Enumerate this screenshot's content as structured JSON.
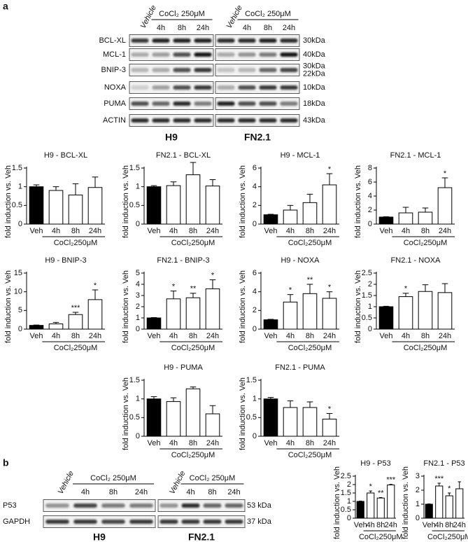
{
  "panel_labels": [
    "a",
    "b"
  ],
  "blot_a": {
    "vehicle": "Vehicle",
    "treatment": "CoCl₂ 250μM",
    "times": [
      "4h",
      "8h",
      "24h"
    ],
    "proteins": [
      "BCL-XL",
      "MCL-1",
      "BNIP-3",
      "NOXA",
      "PUMA",
      "ACTIN"
    ],
    "sizes": [
      [
        "30kDa"
      ],
      [
        "40kDa"
      ],
      [
        "30kDa",
        "22kDa"
      ],
      [
        "10kDa"
      ],
      [
        "18kDa"
      ],
      [
        "43kDa"
      ]
    ],
    "cell_lines": [
      "H9",
      "FN2.1"
    ]
  },
  "blot_b": {
    "vehicle": "Vehicle",
    "treatment": "CoCl₂ 250μM",
    "times": [
      "4h",
      "8h",
      "24h"
    ],
    "proteins": [
      "P53",
      "GAPDH"
    ],
    "sizes": [
      [
        "53 kDa"
      ],
      [
        "37 kDa"
      ]
    ],
    "cell_lines": [
      "H9",
      "FN2.1"
    ]
  },
  "chart_data": [
    {
      "type": "bar",
      "title": "H9 - BCL-XL",
      "y_label": "fold induction vs. Veh",
      "group_label": "CoCl₂250μM",
      "categories": [
        "Veh",
        "4h",
        "8h",
        "24h"
      ],
      "values": [
        1.0,
        0.9,
        0.78,
        0.98
      ],
      "errors": [
        0.05,
        0.1,
        0.3,
        0.28
      ],
      "significance": [
        null,
        null,
        null,
        null
      ],
      "colors": [
        "#000000",
        "#ffffff",
        "#ffffff",
        "#ffffff"
      ],
      "ylim": [
        0,
        1.5
      ],
      "yticks": [
        0,
        0.5,
        1,
        1.5
      ]
    },
    {
      "type": "bar",
      "title": "FN2.1 - BCL-XL",
      "y_label": "fold induction vs. Veh",
      "group_label": "CoCl₂250μM",
      "categories": [
        "Veh",
        "4h",
        "8h",
        "24h"
      ],
      "values": [
        1.0,
        1.03,
        1.32,
        1.02
      ],
      "errors": [
        0.03,
        0.1,
        0.33,
        0.17
      ],
      "significance": [
        null,
        null,
        null,
        null
      ],
      "colors": [
        "#000000",
        "#ffffff",
        "#ffffff",
        "#ffffff"
      ],
      "ylim": [
        0,
        1.5
      ],
      "yticks": [
        0,
        0.5,
        1,
        1.5
      ]
    },
    {
      "type": "bar",
      "title": "H9 - MCL-1",
      "y_label": "fold induction vs. Veh",
      "group_label": "CoCl₂250μM",
      "categories": [
        "Veh",
        "4h",
        "8h",
        "24h"
      ],
      "values": [
        1.0,
        1.5,
        2.3,
        4.2
      ],
      "errors": [
        0.05,
        0.5,
        0.9,
        1.2
      ],
      "significance": [
        null,
        null,
        null,
        "*"
      ],
      "colors": [
        "#000000",
        "#ffffff",
        "#ffffff",
        "#ffffff"
      ],
      "ylim": [
        0,
        6
      ],
      "yticks": [
        0,
        2,
        4,
        6
      ]
    },
    {
      "type": "bar",
      "title": "FN2.1 - MCL-1",
      "y_label": "fold induction vs. Veh",
      "group_label": "CoCl₂250μM",
      "categories": [
        "Veh",
        "4h",
        "8h",
        "24h"
      ],
      "values": [
        1.0,
        1.6,
        1.7,
        5.2
      ],
      "errors": [
        0.05,
        0.8,
        0.6,
        1.4
      ],
      "significance": [
        null,
        null,
        null,
        "*"
      ],
      "colors": [
        "#000000",
        "#ffffff",
        "#ffffff",
        "#ffffff"
      ],
      "ylim": [
        0,
        8
      ],
      "yticks": [
        0,
        2,
        4,
        6,
        8
      ]
    },
    {
      "type": "bar",
      "title": "H9 - BNIP-3",
      "y_label": "fold induction vs. Veh",
      "group_label": "CoCl₂250μM",
      "categories": [
        "Veh",
        "4h",
        "8h",
        "24h"
      ],
      "values": [
        1.0,
        1.4,
        3.9,
        7.9
      ],
      "errors": [
        0.1,
        0.4,
        0.6,
        2.6
      ],
      "significance": [
        null,
        null,
        "***",
        "*"
      ],
      "colors": [
        "#000000",
        "#ffffff",
        "#ffffff",
        "#ffffff"
      ],
      "ylim": [
        0,
        15
      ],
      "yticks": [
        0,
        5,
        10,
        15
      ]
    },
    {
      "type": "bar",
      "title": "FN2.1 - BNIP-3",
      "y_label": "fold induction vs. Veh",
      "group_label": "CoCl₂250μM",
      "categories": [
        "Veh",
        "4h",
        "8h",
        "24h"
      ],
      "values": [
        1.0,
        2.7,
        2.8,
        3.6
      ],
      "errors": [
        0.03,
        0.7,
        0.4,
        0.8
      ],
      "significance": [
        null,
        "*",
        "**",
        "*"
      ],
      "colors": [
        "#000000",
        "#ffffff",
        "#ffffff",
        "#ffffff"
      ],
      "ylim": [
        0,
        5
      ],
      "yticks": [
        0,
        1,
        2,
        3,
        4,
        5
      ]
    },
    {
      "type": "bar",
      "title": "H9 - NOXA",
      "y_label": "fold induction vs. Veh",
      "group_label": "CoCl₂250μM",
      "categories": [
        "Veh",
        "4h",
        "8h",
        "24h"
      ],
      "values": [
        1.0,
        2.9,
        3.8,
        3.3
      ],
      "errors": [
        0.05,
        0.8,
        1.0,
        0.7
      ],
      "significance": [
        null,
        "*",
        "**",
        "*"
      ],
      "colors": [
        "#000000",
        "#ffffff",
        "#ffffff",
        "#ffffff"
      ],
      "ylim": [
        0,
        6
      ],
      "yticks": [
        0,
        2,
        4,
        6
      ]
    },
    {
      "type": "bar",
      "title": "FN2.1 - NOXA",
      "y_label": "fold induction vs. Veh",
      "group_label": "CoCl₂250μM",
      "categories": [
        "Veh",
        "4h",
        "8h",
        "24h"
      ],
      "values": [
        1.0,
        1.45,
        1.68,
        1.63
      ],
      "errors": [
        0.02,
        0.15,
        0.3,
        0.4
      ],
      "significance": [
        null,
        "*",
        null,
        null
      ],
      "colors": [
        "#000000",
        "#ffffff",
        "#ffffff",
        "#ffffff"
      ],
      "ylim": [
        0,
        2.5
      ],
      "yticks": [
        0,
        0.5,
        1,
        1.5,
        2,
        2.5
      ]
    },
    {
      "type": "bar",
      "title": "H9 - PUMA",
      "y_label": "fold induction vs. Veh",
      "group_label": "CoCl₂250μM",
      "categories": [
        "Veh",
        "4h",
        "8h",
        "24h"
      ],
      "values": [
        1.0,
        0.93,
        1.27,
        0.6
      ],
      "errors": [
        0.06,
        0.1,
        0.05,
        0.22
      ],
      "significance": [
        null,
        null,
        null,
        null
      ],
      "colors": [
        "#000000",
        "#ffffff",
        "#ffffff",
        "#ffffff"
      ],
      "ylim": [
        0,
        1.5
      ],
      "yticks": [
        0,
        0.5,
        1,
        1.5
      ]
    },
    {
      "type": "bar",
      "title": "FN2.1 - PUMA",
      "y_label": "fold induction vs. Veh",
      "group_label": "CoCl₂250μM",
      "categories": [
        "Veh",
        "4h",
        "8h",
        "24h"
      ],
      "values": [
        1.0,
        0.77,
        0.77,
        0.46
      ],
      "errors": [
        0.04,
        0.18,
        0.15,
        0.15
      ],
      "significance": [
        null,
        null,
        null,
        "*"
      ],
      "colors": [
        "#000000",
        "#ffffff",
        "#ffffff",
        "#ffffff"
      ],
      "ylim": [
        0,
        1.5
      ],
      "yticks": [
        0,
        0.5,
        1,
        1.5
      ]
    },
    {
      "type": "bar",
      "title": "H9 - P53",
      "y_label": "fold induction vs. Veh",
      "group_label": "CoCl₂250μM",
      "categories": [
        "Veh",
        "4h",
        "8h",
        "24h"
      ],
      "values": [
        1.0,
        1.5,
        1.2,
        1.98
      ],
      "errors": [
        0.02,
        0.12,
        0.03,
        0.03
      ],
      "significance": [
        null,
        "*",
        "**",
        "***"
      ],
      "colors": [
        "#000000",
        "#ffffff",
        "#ffffff",
        "#ffffff"
      ],
      "ylim": [
        0,
        2.5
      ],
      "yticks": [
        0,
        0.5,
        1,
        1.5,
        2,
        2.5
      ]
    },
    {
      "type": "bar",
      "title": "FN2.1 - P53",
      "y_label": "fold induction vs. Veh",
      "group_label": "CoCl₂250μM",
      "categories": [
        "Veh",
        "4h",
        "8h",
        "24h"
      ],
      "values": [
        1.0,
        2.3,
        1.6,
        2.1
      ],
      "errors": [
        0.02,
        0.2,
        0.2,
        0.5
      ],
      "significance": [
        null,
        "***",
        "*",
        null
      ],
      "colors": [
        "#000000",
        "#ffffff",
        "#ffffff",
        "#ffffff"
      ],
      "ylim": [
        0,
        3
      ],
      "yticks": [
        0,
        1,
        2,
        3
      ]
    }
  ]
}
